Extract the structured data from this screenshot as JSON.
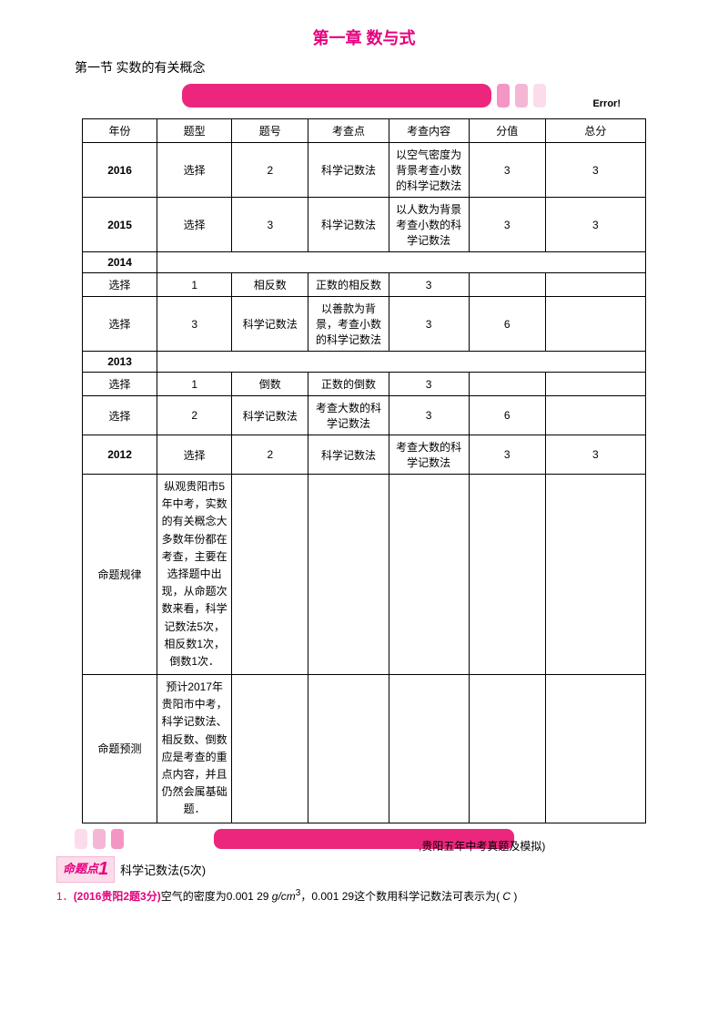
{
  "chapter_title": "第一章 数与式",
  "section_title": "第一节 实数的有关概念",
  "error_label": "Error!",
  "headers": [
    "年份",
    "题型",
    "题号",
    "考查点",
    "考查内容",
    "分值",
    "总分"
  ],
  "rows": [
    {
      "cells": [
        "2016",
        "选择",
        "2",
        "科学记数法",
        "以空气密度为背景考查小数的科学记数法",
        "3",
        "3"
      ],
      "year_bold": true
    },
    {
      "cells": [
        "2015",
        "选择",
        "3",
        "科学记数法",
        "以人数为背景考查小数的科学记数法",
        "3",
        "3"
      ],
      "year_bold": true
    }
  ],
  "year_2014": "2014",
  "rows_2014": [
    {
      "cells": [
        "选择",
        "1",
        "相反数",
        "正数的相反数",
        "3",
        ""
      ]
    },
    {
      "cells": [
        "选择",
        "3",
        "科学记数法",
        "以善款为背景，考查小数的科学记数法",
        "3",
        "6"
      ]
    }
  ],
  "year_2013": "2013",
  "rows_2013": [
    {
      "cells": [
        "选择",
        "1",
        "倒数",
        "正数的倒数",
        "3",
        ""
      ]
    },
    {
      "cells": [
        "选择",
        "2",
        "科学记数法",
        "考查大数的科学记数法",
        "3",
        "6"
      ]
    }
  ],
  "row_2012": {
    "cells": [
      "2012",
      "选择",
      "2",
      "科学记数法",
      "考查大数的科学记数法",
      "3",
      "3"
    ],
    "year_bold": true
  },
  "summary_rows": [
    {
      "label": "命题规律",
      "text": "纵观贵阳市5年中考，实数的有关概念大多数年份都在考查，主要在选择题中出现，从命题次数来看，科学记数法5次，相反数1次，倒数1次．"
    },
    {
      "label": "命题预测",
      "text": "预计2017年贵阳市中考，科学记数法、相反数、倒数应是考查的重点内容，并且仍然会属基础题．"
    }
  ],
  "trail_text": ",贵阳五年中考真题及模拟)",
  "topic_badge_prefix": "命题点",
  "topic_badge_num": "1",
  "topic_label": "科学记数法(5次)",
  "question_num": "1．",
  "question_prefix": "(2016贵阳2题3分)",
  "question_body_a": "空气的密度为0.001 29 ",
  "question_unit": "g/cm",
  "question_sup": "3",
  "question_body_b": "，0.001 29这个数用科学记数法可表示为( ",
  "question_answer": "C",
  "question_close": " )",
  "colors": {
    "brand": "#e6007e",
    "banner": "#ed267d",
    "chip1": "#f396c4",
    "chip2": "#f5b6d5",
    "chip3": "#fcdceb",
    "text": "#000000",
    "border": "#000000"
  }
}
